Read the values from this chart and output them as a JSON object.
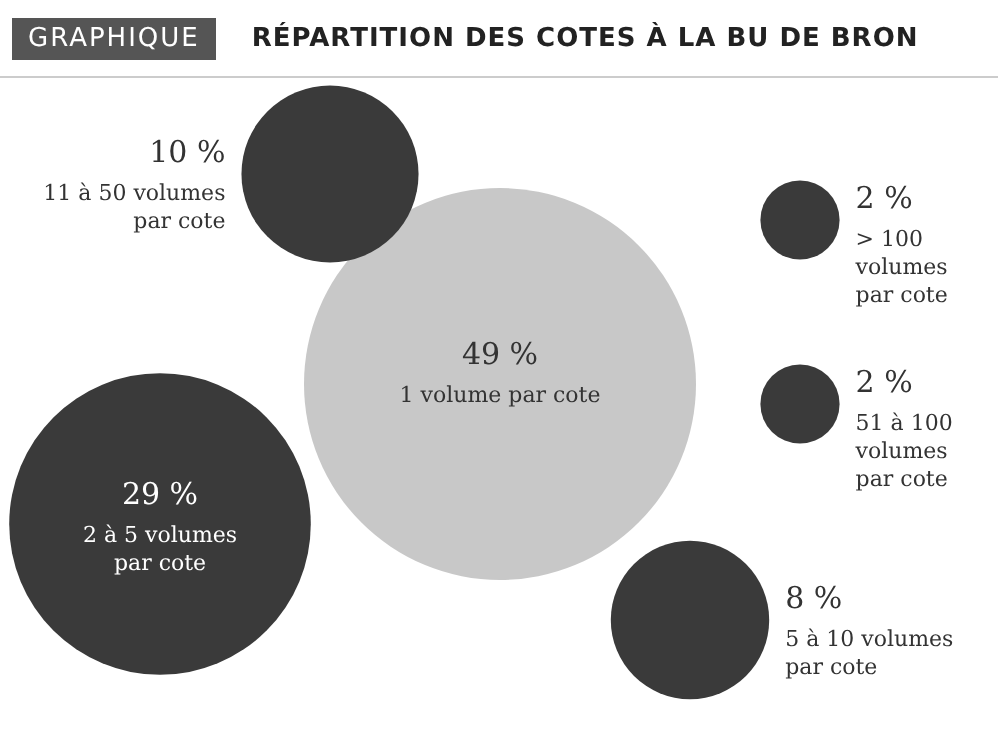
{
  "chart_data": {
    "type": "other",
    "title": "RÉPARTITION DES COTES À LA BU DE BRON",
    "annotations": [
      "GRAPHIQUE"
    ],
    "categories": [
      "2 à 5 volumes par cote",
      "1 volume par cote",
      "5 à 10 volumes par cote",
      "51 à 100 volumes par cote",
      "> 100 volumes par cote",
      "11 à 50 volumes par cote"
    ],
    "values": [
      29,
      49,
      8,
      2,
      2,
      10
    ],
    "value_labels": [
      "29 %",
      "49 %",
      "8 %",
      "2 %",
      "2 %",
      "10 %"
    ],
    "colors": [
      "#3a3a3a",
      "#c8c8c8",
      "#3a3a3a",
      "#3a3a3a",
      "#3a3a3a",
      "#3a3a3a"
    ]
  }
}
